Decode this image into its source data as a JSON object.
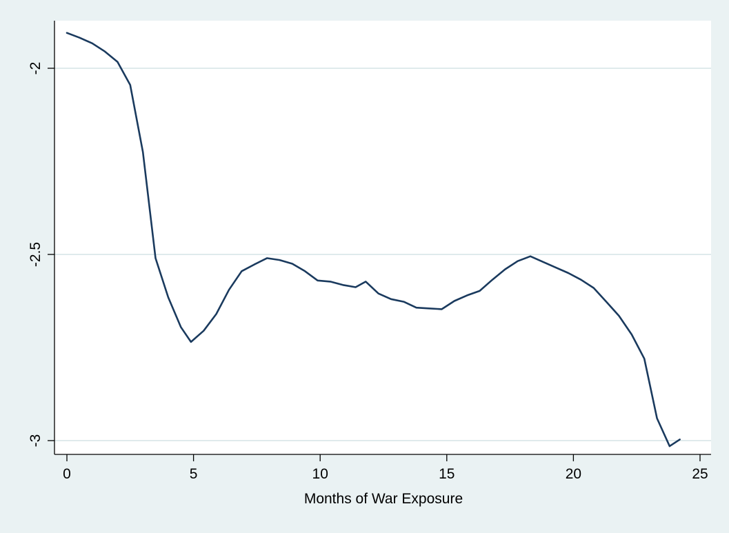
{
  "colors": {
    "page_background": "#eaf2f3",
    "plot_background": "#ffffff",
    "line": "#1a3a5e",
    "grid": "#dfeaec",
    "axis": "#000000"
  },
  "chart_data": {
    "type": "line",
    "title": "",
    "xlabel": "Months of War Exposure",
    "ylabel": "",
    "xlim": [
      0,
      25
    ],
    "ylim": [
      -3.0,
      -2.0
    ],
    "x_ticks": [
      0,
      5,
      10,
      15,
      20,
      25
    ],
    "x_tick_labels": [
      "0",
      "5",
      "10",
      "15",
      "20",
      "25"
    ],
    "y_ticks": [
      -3,
      -2.5,
      -2
    ],
    "y_tick_labels": [
      "-3",
      "-2.5",
      "-2"
    ],
    "grid": "horizontal",
    "legend": "none",
    "series": [
      {
        "x": [
          0,
          0.5,
          1,
          1.5,
          2,
          2.5,
          3,
          3.5,
          4,
          4.5,
          4.9,
          5.4,
          5.9,
          6.4,
          6.9,
          7.4,
          7.9,
          8.4,
          8.9,
          9.4,
          9.9,
          10.4,
          10.9,
          11.4,
          11.8,
          12.3,
          12.8,
          13.3,
          13.8,
          14.3,
          14.8,
          15.3,
          15.8,
          16.3,
          16.8,
          17.3,
          17.8,
          18.3,
          18.8,
          19.3,
          19.8,
          20.3,
          20.8,
          21.3,
          21.8,
          22.3,
          22.8,
          23.3,
          23.8,
          24.2
        ],
        "y": [
          -1.905,
          -1.918,
          -1.933,
          -1.955,
          -1.983,
          -2.045,
          -2.225,
          -2.51,
          -2.615,
          -2.695,
          -2.735,
          -2.705,
          -2.66,
          -2.595,
          -2.545,
          -2.527,
          -2.51,
          -2.515,
          -2.525,
          -2.545,
          -2.57,
          -2.573,
          -2.582,
          -2.588,
          -2.573,
          -2.605,
          -2.62,
          -2.627,
          -2.643,
          -2.645,
          -2.647,
          -2.625,
          -2.61,
          -2.598,
          -2.568,
          -2.54,
          -2.518,
          -2.505,
          -2.52,
          -2.535,
          -2.55,
          -2.568,
          -2.59,
          -2.627,
          -2.665,
          -2.715,
          -2.78,
          -2.94,
          -3.015,
          -2.997
        ]
      }
    ]
  }
}
